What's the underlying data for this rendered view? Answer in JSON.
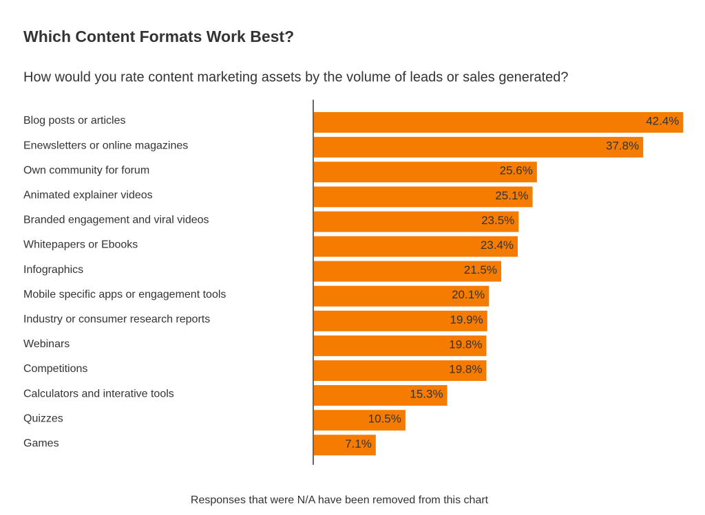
{
  "chart_data": {
    "type": "hbar",
    "title": "Which Content Formats Work Best?",
    "subtitle": "How would you rate content marketing assets by the volume of leads or sales generated?",
    "note": "Responses that were N/A have been removed from this chart",
    "categories": [
      "Blog posts or articles",
      "Enewsletters or online magazines",
      "Own community for forum",
      "Animated explainer videos",
      "Branded engagement and viral videos",
      "Whitepapers or Ebooks",
      "Infographics",
      "Mobile specific apps or engagement tools",
      "Industry or consumer research reports",
      "Webinars",
      "Competitions",
      "Calculators and interative tools",
      "Quizzes",
      "Games"
    ],
    "values": [
      42.4,
      37.8,
      25.6,
      25.1,
      23.5,
      23.4,
      21.5,
      20.1,
      19.9,
      19.8,
      19.8,
      15.3,
      10.5,
      7.1
    ],
    "value_labels": [
      "42.4%",
      "37.8%",
      "25.6%",
      "25.1%",
      "23.5%",
      "23.4%",
      "21.5%",
      "20.1%",
      "19.9%",
      "19.8%",
      "19.8%",
      "15.3%",
      "10.5%",
      "7.1%"
    ],
    "color": "#f57c00",
    "xlim": [
      0,
      43
    ]
  }
}
